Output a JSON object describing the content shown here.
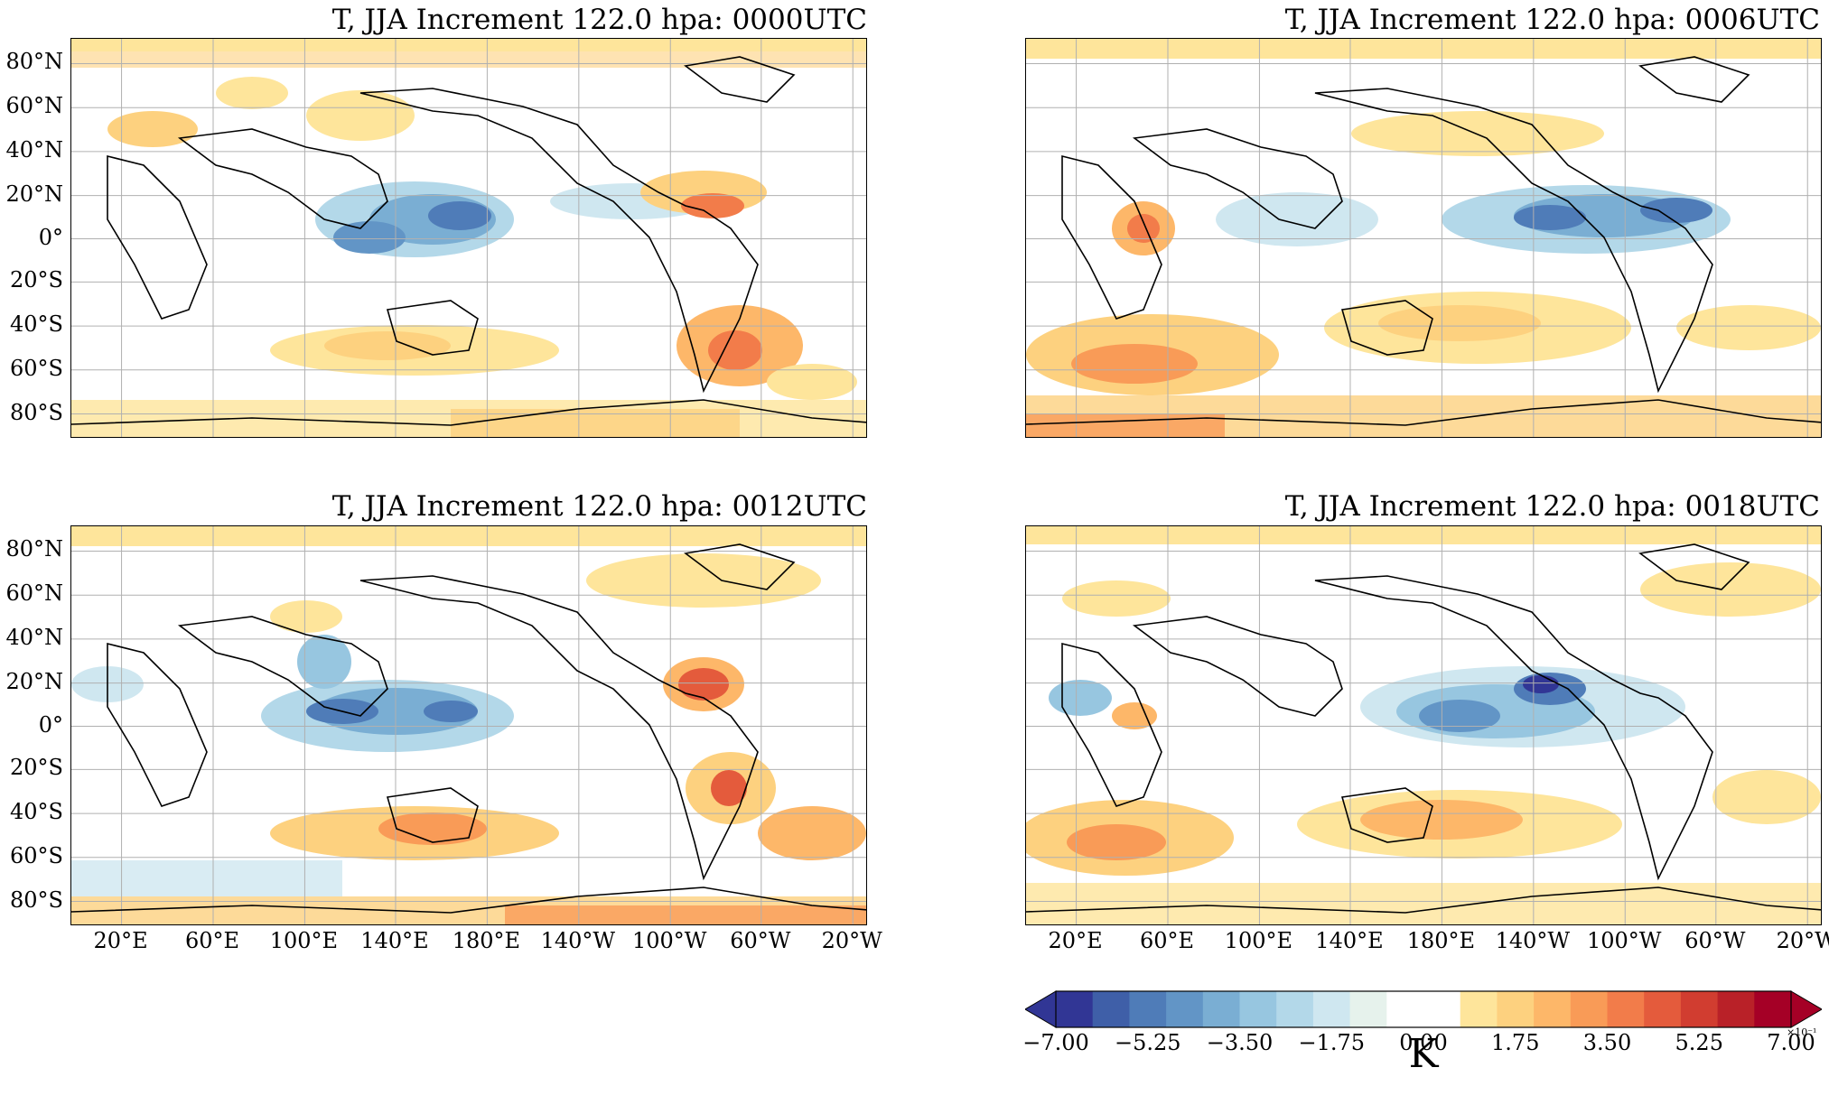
{
  "panels": [
    {
      "title": "T, JJA Increment 122.0 hpa:  0000UTC"
    },
    {
      "title": "T, JJA Increment 122.0 hpa:  0006UTC"
    },
    {
      "title": "T, JJA Increment 122.0 hpa:  0012UTC"
    },
    {
      "title": "T, JJA Increment 122.0 hpa:  0018UTC"
    }
  ],
  "lat_labels": [
    "80°N",
    "60°N",
    "40°N",
    "20°N",
    "0°",
    "20°S",
    "40°S",
    "60°S",
    "80°S"
  ],
  "lon_labels": [
    "20°E",
    "60°E",
    "100°E",
    "140°E",
    "180°E",
    "140°W",
    "100°W",
    "60°W",
    "20°W"
  ],
  "colorbar": {
    "ticks": [
      "−7.00",
      "−5.25",
      "−3.50",
      "−1.75",
      "0.00",
      "1.75",
      "3.50",
      "5.25",
      "7.00"
    ],
    "label": "K",
    "exponent": "×10⁻¹",
    "colors": [
      "#313695",
      "#3f5fa8",
      "#4f7cb8",
      "#6295c6",
      "#7aaed3",
      "#97c6e0",
      "#b3d8e9",
      "#cfe7f0",
      "#e6f2ec",
      "#ffffff",
      "#ffffff",
      "#fee59b",
      "#fdd17f",
      "#fdb769",
      "#f99b57",
      "#f27c4a",
      "#e45b3c",
      "#d13d30",
      "#b92128",
      "#a50026"
    ],
    "extend_min_color": "#313695",
    "extend_max_color": "#a50026"
  }
}
